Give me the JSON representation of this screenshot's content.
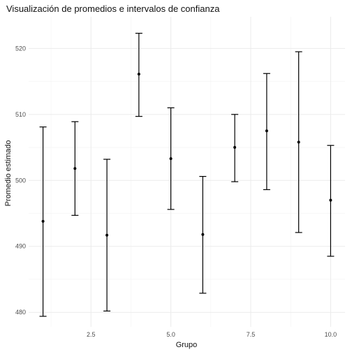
{
  "chart_data": {
    "type": "scatter",
    "title": "Visualización de promedios e intervalos de confianza",
    "xlabel": "Grupo",
    "ylabel": "Promedio estimado",
    "xlim": [
      0.55,
      10.45
    ],
    "ylim": [
      477.8,
      524.8
    ],
    "xticks": [
      2.5,
      5.0,
      7.5,
      10.0
    ],
    "xtick_labels": [
      "2.5",
      "5.0",
      "7.5",
      "10.0"
    ],
    "yticks": [
      480,
      490,
      500,
      510,
      520
    ],
    "ytick_labels": [
      "480",
      "490",
      "500",
      "510",
      "520"
    ],
    "grid": true,
    "points": [
      {
        "x": 1,
        "y": 493.8,
        "lower": 479.4,
        "upper": 508.1
      },
      {
        "x": 2,
        "y": 501.8,
        "lower": 494.7,
        "upper": 508.9
      },
      {
        "x": 3,
        "y": 491.7,
        "lower": 480.2,
        "upper": 503.2
      },
      {
        "x": 4,
        "y": 516.1,
        "lower": 509.7,
        "upper": 522.3
      },
      {
        "x": 5,
        "y": 503.3,
        "lower": 495.6,
        "upper": 511.0
      },
      {
        "x": 6,
        "y": 491.8,
        "lower": 482.9,
        "upper": 500.6
      },
      {
        "x": 7,
        "y": 505.0,
        "lower": 499.8,
        "upper": 510.0
      },
      {
        "x": 8,
        "y": 507.5,
        "lower": 498.6,
        "upper": 516.2
      },
      {
        "x": 9,
        "y": 505.8,
        "lower": 492.1,
        "upper": 519.5
      },
      {
        "x": 10,
        "y": 497.0,
        "lower": 488.5,
        "upper": 505.3
      }
    ]
  }
}
